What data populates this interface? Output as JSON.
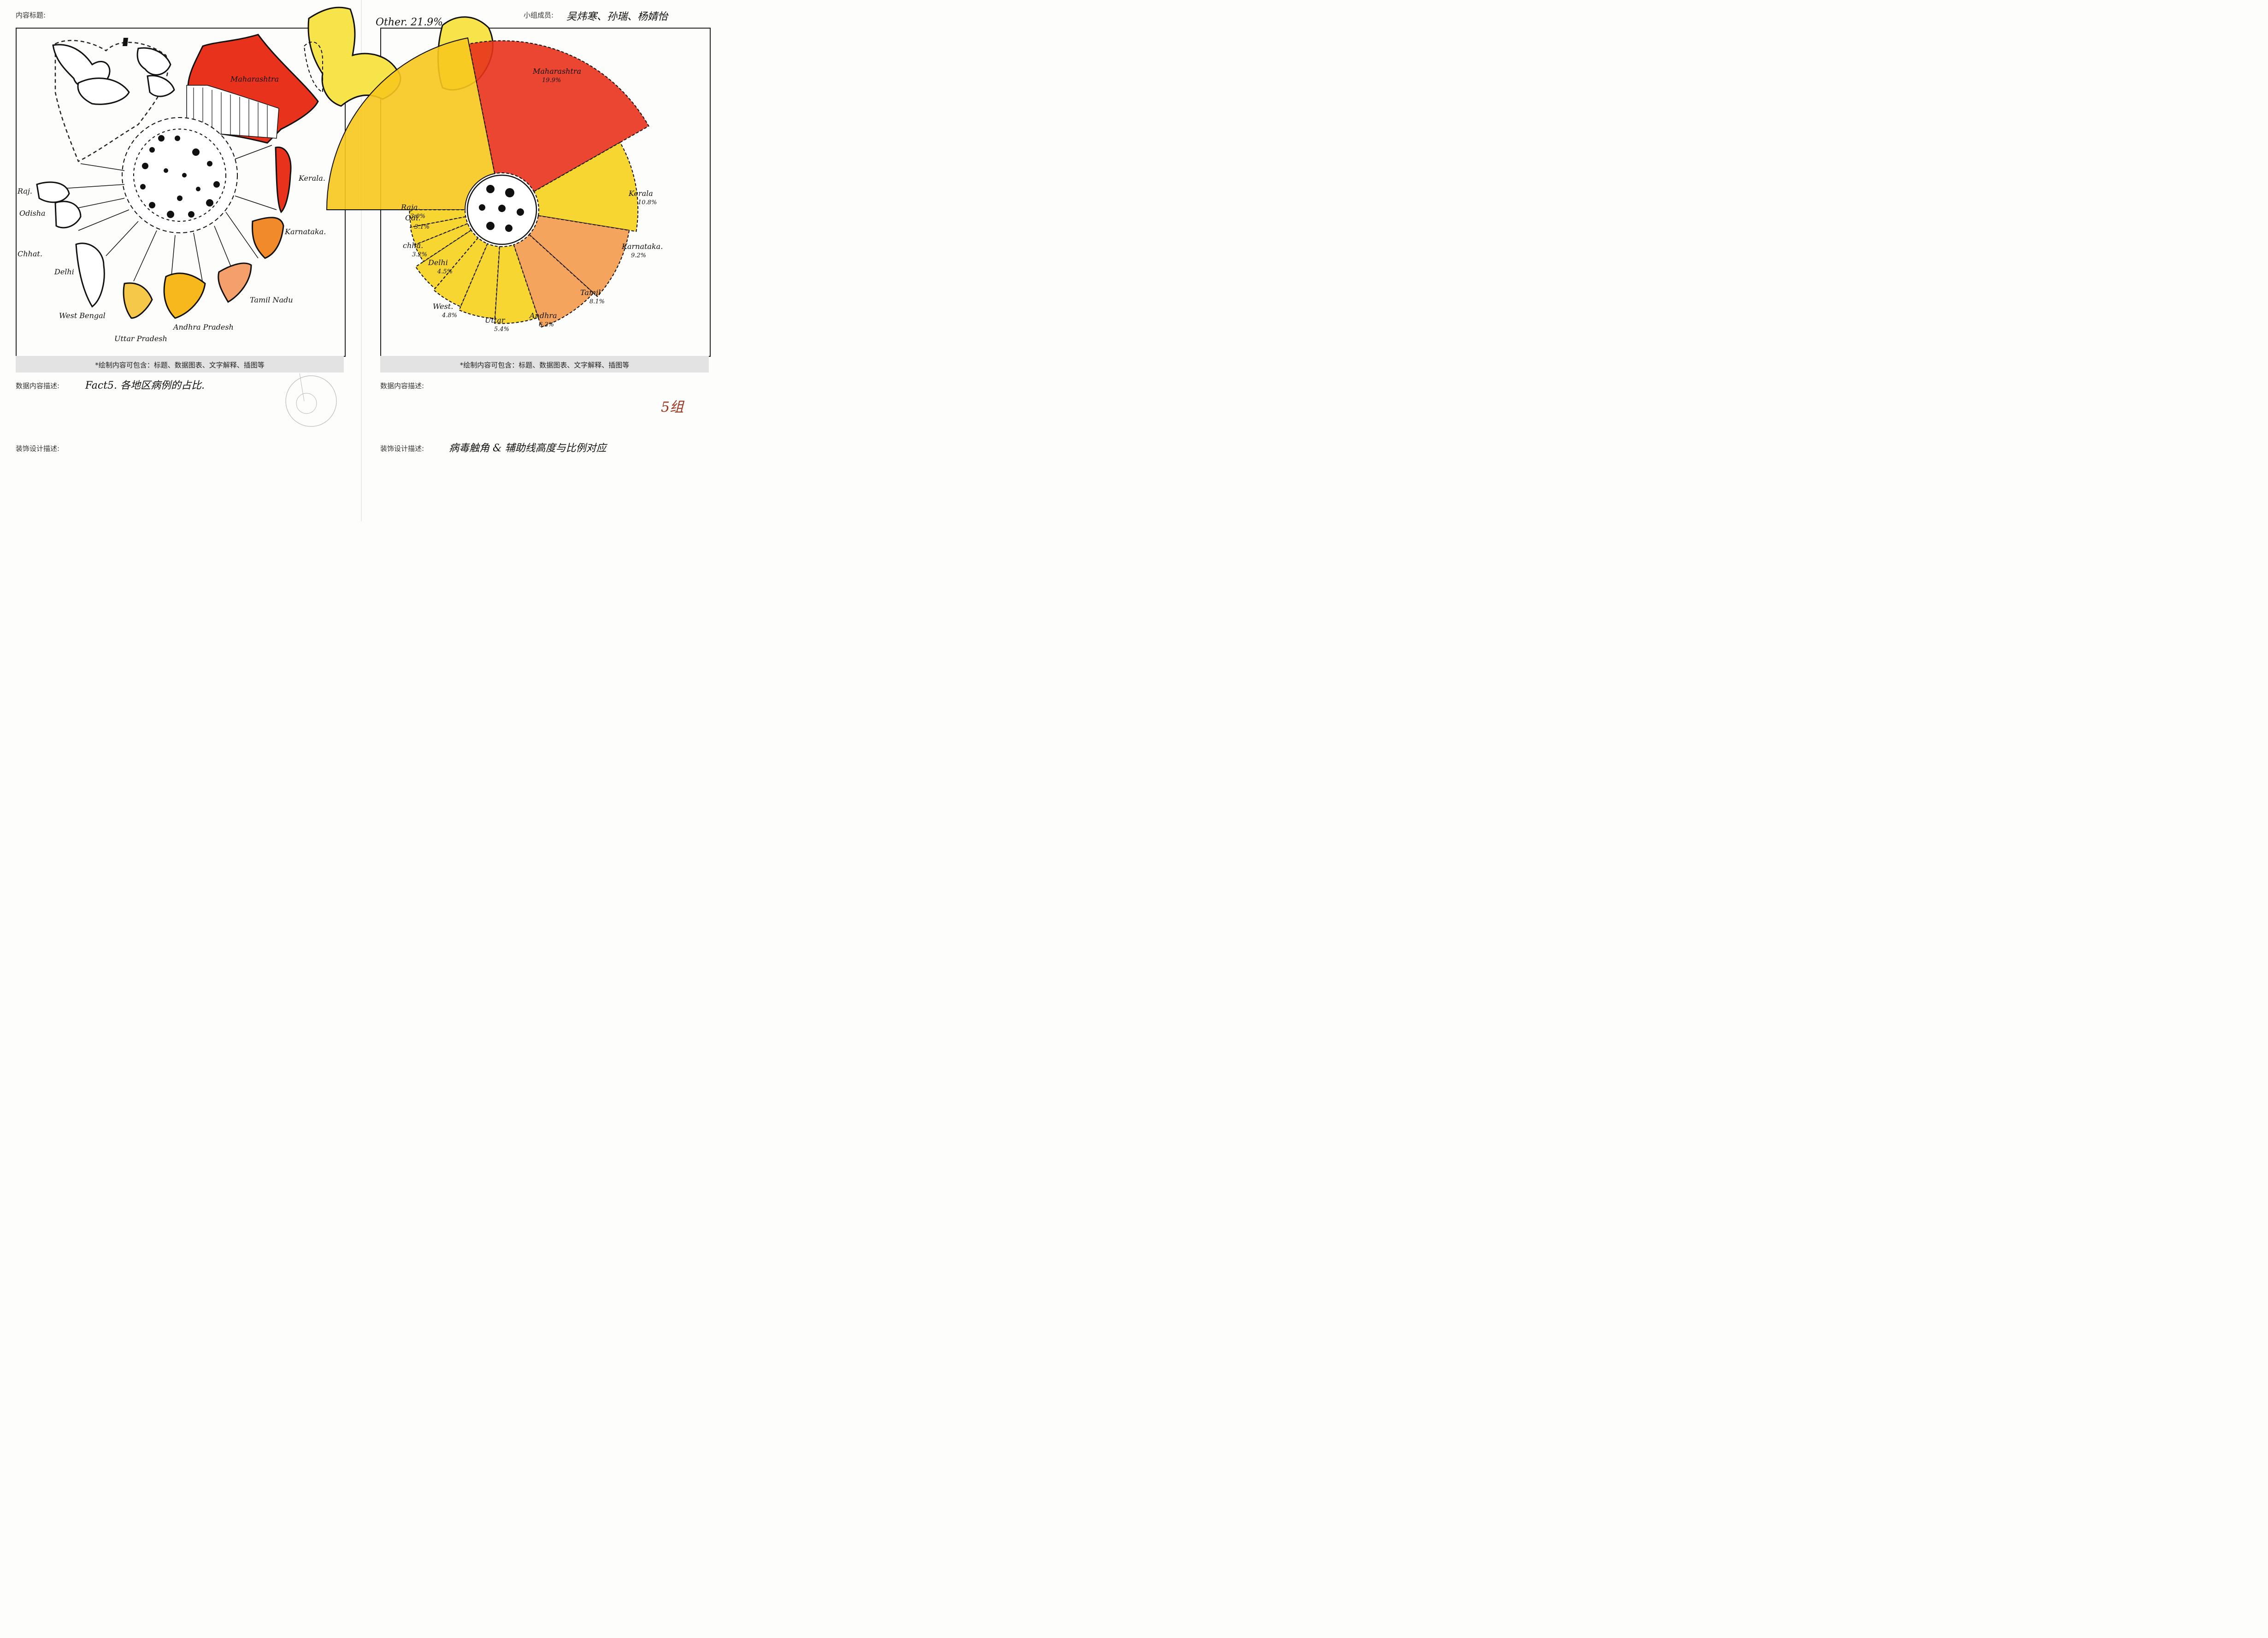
{
  "header": {
    "content_title_label": "内容标题:",
    "members_label": "小组成员:",
    "members_value": "吴炜寒、孙瑞、杨婧怡"
  },
  "left_panel": {
    "footer_note": "*绘制内容可包含：标题、数据图表、文字解释、插图等",
    "data_desc_label": "数据内容描述:",
    "data_desc_value": "Fact5. 各地区病例的占比.",
    "deco_label": "装饰设计描述:",
    "regions": [
      "Maharashtra",
      "Kerala.",
      "Karnataka.",
      "Tamil Nadu",
      "Andhra Pradesh",
      "Uttar Pradesh",
      "West Bengal",
      "Delhi",
      "Chhat.",
      "Odisha",
      "Raj."
    ]
  },
  "right_panel": {
    "footer_note": "*绘制内容可包含：标题、数据图表、文字解释、插图等",
    "data_desc_label": "数据内容描述:",
    "group_mark": "5组",
    "deco_label": "装饰设计描述:",
    "deco_value": "病毒触角 & 辅助线高度与比例对应",
    "other_label": "Other. 21.9%"
  },
  "chart_data": {
    "type": "pie",
    "categories": [
      "Other",
      "Maharashtra",
      "Kerala",
      "Karnataka",
      "Tamil",
      "Andhra",
      "Uttar",
      "West",
      "Delhi",
      "Chha.",
      "Odi.",
      "Raja."
    ],
    "display_labels": [
      "Other.",
      "Maharashtra",
      "Kerala",
      "Karnataka.",
      "Tamil",
      "Andhra",
      "Uttar",
      "West.",
      "Delhi",
      "chha.",
      "Odi.",
      "Raja."
    ],
    "value_labels": [
      "21.9%",
      "19.9%",
      "10.8%",
      "9.2%",
      "8.1%",
      "6.2%",
      "5.4%",
      "4.8%",
      "4.5%",
      "3.2%",
      "3.1%",
      "3.0%"
    ],
    "values": [
      21.9,
      19.9,
      10.8,
      9.2,
      8.1,
      6.2,
      5.4,
      4.8,
      4.5,
      3.2,
      3.1,
      3.0
    ],
    "colors": {
      "high": "#e8321c",
      "mid": "#f08a2a",
      "low": "#f6d21c",
      "hatch": "#e4d84a",
      "ink": "#111111"
    }
  }
}
